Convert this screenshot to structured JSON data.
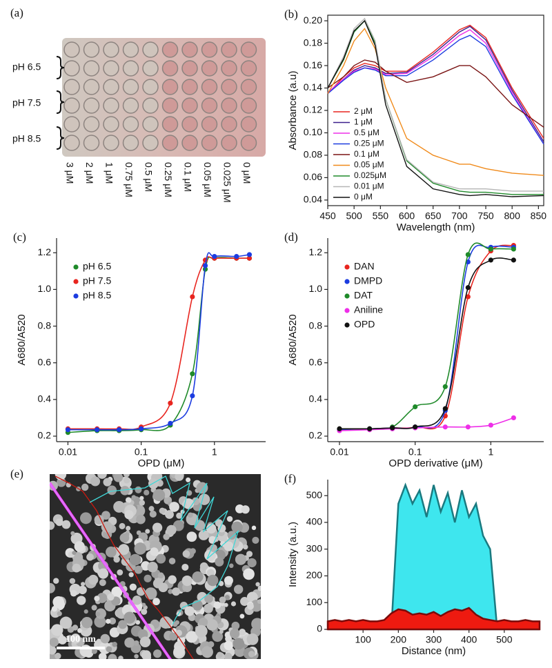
{
  "panel_a": {
    "label": "(a)",
    "row_labels": [
      "pH 6.5",
      "pH 7.5",
      "pH 8.5"
    ],
    "column_labels": [
      "3 μM",
      "2 μM",
      "1 μM",
      "0.75 μM",
      "0.5 μM",
      "0.25 μM",
      "0.1 μM",
      "0.05 μM",
      "0.025 μM",
      "0 μM"
    ]
  },
  "panel_e": {
    "label": "(e)",
    "scale_bar": "100 nm"
  },
  "chart_data": [
    {
      "label": "(b)",
      "type": "line",
      "xlabel": "Wavelength (nm)",
      "ylabel": "Absorbance (a.u)",
      "x": [
        450,
        480,
        500,
        520,
        540,
        560,
        600,
        650,
        700,
        720,
        750,
        800,
        860
      ],
      "xlim": [
        450,
        860
      ],
      "xticks": [
        450,
        500,
        550,
        600,
        650,
        700,
        750,
        800,
        850
      ],
      "ylim": [
        0.035,
        0.205
      ],
      "yticks": [
        0.04,
        0.06,
        0.08,
        {
          "value": 0.1,
          "label": "0.10"
        },
        0.12,
        0.14,
        0.16,
        0.18,
        {
          "value": 0.2,
          "label": "0.20"
        }
      ],
      "legend": "lower left",
      "series": [
        {
          "name": "2 μM",
          "color": "#e8251f",
          "values": [
            0.135,
            0.15,
            0.158,
            0.162,
            0.16,
            0.155,
            0.155,
            0.172,
            0.192,
            0.196,
            0.185,
            0.14,
            0.095
          ]
        },
        {
          "name": "1 μM",
          "color": "#3a1f8c",
          "values": [
            0.135,
            0.148,
            0.156,
            0.16,
            0.158,
            0.153,
            0.154,
            0.17,
            0.19,
            0.195,
            0.183,
            0.138,
            0.092
          ]
        },
        {
          "name": "0.5 μM",
          "color": "#ee2ee8",
          "values": [
            0.136,
            0.148,
            0.155,
            0.158,
            0.157,
            0.152,
            0.153,
            0.168,
            0.187,
            0.192,
            0.18,
            0.136,
            0.09
          ]
        },
        {
          "name": "0.25 μM",
          "color": "#1c3ce0",
          "values": [
            0.135,
            0.147,
            0.154,
            0.158,
            0.156,
            0.151,
            0.151,
            0.165,
            0.183,
            0.187,
            0.177,
            0.134,
            0.09
          ]
        },
        {
          "name": "0.1 μM",
          "color": "#7a1414",
          "values": [
            0.14,
            0.15,
            0.16,
            0.165,
            0.163,
            0.155,
            0.145,
            0.15,
            0.16,
            0.16,
            0.15,
            0.125,
            0.105
          ]
        },
        {
          "name": "0.05 μM",
          "color": "#f08a1a",
          "values": [
            0.135,
            0.16,
            0.182,
            0.193,
            0.175,
            0.14,
            0.095,
            0.08,
            0.072,
            0.072,
            0.068,
            0.064,
            0.062
          ]
        },
        {
          "name": "0.025μM",
          "color": "#1f8a2a",
          "values": [
            0.14,
            0.165,
            0.19,
            0.2,
            0.18,
            0.13,
            0.075,
            0.055,
            0.048,
            0.047,
            0.047,
            0.045,
            0.045
          ]
        },
        {
          "name": "0.01 μM",
          "color": "#b5b5b5",
          "values": [
            0.14,
            0.168,
            0.193,
            0.202,
            0.182,
            0.13,
            0.076,
            0.056,
            0.05,
            0.05,
            0.05,
            0.048,
            0.048
          ]
        },
        {
          "name": "0 μM",
          "color": "#111111",
          "values": [
            0.14,
            0.166,
            0.191,
            0.2,
            0.178,
            0.125,
            0.07,
            0.05,
            0.045,
            0.044,
            0.045,
            0.043,
            0.044
          ]
        }
      ]
    },
    {
      "label": "(c)",
      "type": "scatter",
      "xlabel": "OPD (μM)",
      "ylabel": "A680/A520",
      "xscale": "log",
      "x": [
        0.01,
        0.025,
        0.05,
        0.1,
        0.25,
        0.5,
        0.75,
        1,
        2,
        3
      ],
      "xlim": [
        0.007,
        5
      ],
      "xticks": [
        0.01,
        0.1,
        1
      ],
      "ylim": [
        0.17,
        1.28
      ],
      "yticks": [
        0.2,
        0.4,
        0.6,
        0.8,
        {
          "value": 1,
          "label": "1.0"
        },
        1.2
      ],
      "legend": "upper left",
      "series": [
        {
          "name": "pH 6.5",
          "color": "#1f8a2a",
          "values": [
            0.22,
            0.23,
            0.23,
            0.235,
            0.26,
            0.54,
            1.11,
            1.17,
            1.17,
            1.17
          ]
        },
        {
          "name": "pH 7.5",
          "color": "#e8251f",
          "values": [
            0.24,
            0.24,
            0.24,
            0.25,
            0.38,
            0.96,
            1.16,
            1.17,
            1.17,
            1.17
          ]
        },
        {
          "name": "pH 8.5",
          "color": "#1c3ce0",
          "values": [
            0.235,
            0.235,
            0.235,
            0.24,
            0.27,
            0.42,
            1.13,
            1.18,
            1.18,
            1.19
          ]
        }
      ]
    },
    {
      "label": "(d)",
      "type": "scatter",
      "xlabel": "OPD derivative (μM)",
      "ylabel": "A680/A520",
      "xscale": "log",
      "x": [
        0.01,
        0.025,
        0.05,
        0.1,
        0.25,
        0.5,
        1,
        2
      ],
      "xlim": [
        0.007,
        5
      ],
      "xticks": [
        0.01,
        0.1,
        1
      ],
      "ylim": [
        0.17,
        1.28
      ],
      "yticks": [
        0.2,
        0.4,
        0.6,
        0.8,
        {
          "value": 1,
          "label": "1.0"
        },
        1.2
      ],
      "legend": "upper left",
      "series": [
        {
          "name": "DAN",
          "color": "#e8251f",
          "values": [
            0.24,
            0.24,
            0.245,
            0.25,
            0.31,
            0.96,
            1.21,
            1.24
          ]
        },
        {
          "name": "DMPD",
          "color": "#1c3ce0",
          "values": [
            0.235,
            0.24,
            0.245,
            0.25,
            0.34,
            1.15,
            1.23,
            1.23
          ]
        },
        {
          "name": "DAT",
          "color": "#1f8a2a",
          "values": [
            0.24,
            0.24,
            0.25,
            0.36,
            0.47,
            1.19,
            1.22,
            1.22
          ]
        },
        {
          "name": "Aniline",
          "color": "#ee2ee8",
          "values": [
            0.23,
            0.235,
            0.24,
            0.245,
            0.25,
            0.25,
            0.26,
            0.3
          ]
        },
        {
          "name": "OPD",
          "color": "#111111",
          "values": [
            0.24,
            0.24,
            0.245,
            0.25,
            0.35,
            1.01,
            1.16,
            1.16
          ]
        }
      ]
    },
    {
      "label": "(f)",
      "type": "area",
      "xlabel": "Distance (nm)",
      "ylabel": "Intensity (a.u.)",
      "x": [
        0,
        20,
        40,
        60,
        80,
        100,
        120,
        140,
        160,
        180,
        200,
        220,
        240,
        260,
        280,
        300,
        320,
        340,
        360,
        380,
        400,
        420,
        440,
        460,
        480,
        500,
        520,
        540,
        560,
        580,
        600
      ],
      "xlim": [
        0,
        600
      ],
      "xticks": [
        100,
        200,
        300,
        400,
        500
      ],
      "ylim": [
        0,
        560
      ],
      "yticks": [
        0,
        100,
        200,
        300,
        400,
        500
      ],
      "series": [
        {
          "color": "#3ee6ee",
          "edgecolor": "#1a7a80",
          "values": [
            0,
            0,
            0,
            0,
            0,
            0,
            0,
            0,
            0,
            0,
            470,
            540,
            470,
            520,
            420,
            540,
            440,
            510,
            400,
            520,
            420,
            470,
            350,
            300,
            0,
            0,
            0,
            0,
            0,
            0,
            0
          ]
        },
        {
          "color": "#ee1a10",
          "edgecolor": "#7a0a0a",
          "values": [
            30,
            35,
            30,
            35,
            30,
            35,
            30,
            30,
            35,
            60,
            75,
            70,
            55,
            60,
            55,
            65,
            50,
            65,
            75,
            70,
            80,
            55,
            40,
            35,
            30,
            35,
            30,
            30,
            35,
            30,
            30
          ]
        }
      ]
    }
  ]
}
